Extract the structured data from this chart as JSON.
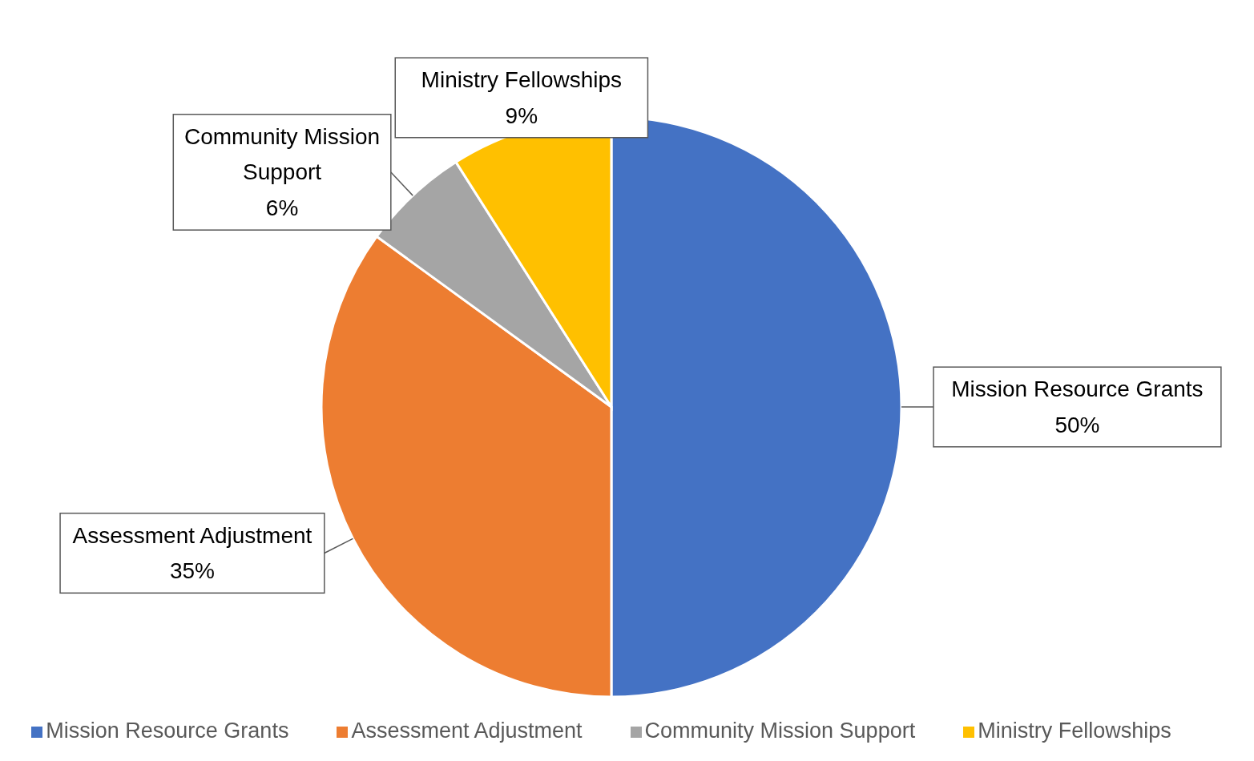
{
  "chart_data": {
    "type": "pie",
    "categories": [
      "Mission Resource Grants",
      "Assessment Adjustment",
      "Community Mission Support",
      "Ministry Fellowships"
    ],
    "values": [
      50,
      35,
      6,
      9
    ],
    "value_labels": [
      "50%",
      "35%",
      "6%",
      "9%"
    ],
    "colors": [
      "#4472c4",
      "#ed7d31",
      "#a5a5a5",
      "#ffc000"
    ],
    "legend": "bottom"
  }
}
